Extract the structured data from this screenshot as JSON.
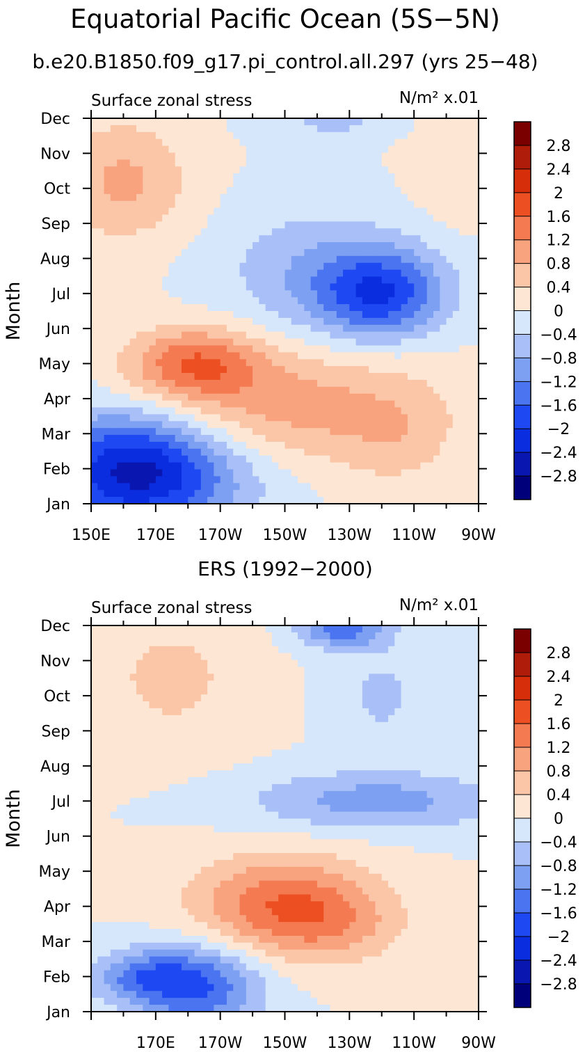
{
  "title": "Equatorial Pacific Ocean (5S−5N)",
  "subtitle": "b.e20.B1850.f09_g17.pi_control.all.297 (yrs 25−48)",
  "chart_data": [
    {
      "type": "heatmap",
      "name": "model",
      "panel_title": "",
      "left_label": "Surface zonal stress",
      "units_label": "N/m² x.01",
      "ylabel": "Month",
      "months": [
        "Jan",
        "Feb",
        "Mar",
        "Apr",
        "May",
        "Jun",
        "Jul",
        "Aug",
        "Sep",
        "Oct",
        "Nov",
        "Dec"
      ],
      "x_tick_labels": [
        "150E",
        "170E",
        "170W",
        "150W",
        "130W",
        "110W",
        "90W"
      ],
      "x_range_deg_east": [
        150,
        270
      ],
      "levels": [
        -2.8,
        -2.4,
        -2,
        -1.6,
        -1.2,
        -0.8,
        -0.4,
        0,
        0.4,
        0.8,
        1.2,
        1.6,
        2,
        2.4,
        2.8
      ],
      "level_labels": [
        "2.8",
        "2.4",
        "2",
        "1.6",
        "1.2",
        "0.8",
        "0.4",
        "0",
        "−0.4",
        "−0.8",
        "−1.2",
        "−1.6",
        "−2",
        "−2.4",
        "−2.8"
      ],
      "anomalies": [
        {
          "lon": 162,
          "month": 2.0,
          "sx": 20,
          "sy": 1.2,
          "amp": -2.2
        },
        {
          "lon": 178,
          "month": 1.7,
          "sx": 22,
          "sy": 1.0,
          "amp": -0.6
        },
        {
          "lon": 182,
          "month": 5.0,
          "sx": 14,
          "sy": 0.7,
          "amp": 1.4
        },
        {
          "lon": 210,
          "month": 3.8,
          "sx": 32,
          "sy": 1.2,
          "amp": 1.0
        },
        {
          "lon": 245,
          "month": 2.8,
          "sx": 12,
          "sy": 1.0,
          "amp": 0.4
        },
        {
          "lon": 240,
          "month": 7.0,
          "sx": 14,
          "sy": 0.9,
          "amp": -1.8
        },
        {
          "lon": 218,
          "month": 7.6,
          "sx": 20,
          "sy": 1.3,
          "amp": -0.7
        },
        {
          "lon": 160,
          "month": 10.2,
          "sx": 14,
          "sy": 1.2,
          "amp": 0.9
        },
        {
          "lon": 225,
          "month": 11.9,
          "sx": 14,
          "sy": 0.35,
          "amp": -0.5
        },
        {
          "lon": 265,
          "month": 10.8,
          "sx": 10,
          "sy": 1.2,
          "amp": 0.4
        }
      ]
    },
    {
      "type": "heatmap",
      "name": "ers",
      "panel_title": "ERS (1992−2000)",
      "left_label": "Surface zonal stress",
      "units_label": "N/m² x.01",
      "ylabel": "Month",
      "months": [
        "Jan",
        "Feb",
        "Mar",
        "Apr",
        "May",
        "Jun",
        "Jul",
        "Aug",
        "Sep",
        "Oct",
        "Nov",
        "Dec"
      ],
      "x_tick_labels": [
        "170E",
        "170W",
        "150W",
        "130W",
        "110W",
        "90W"
      ],
      "x_range_deg_east": [
        150,
        270
      ],
      "levels": [
        -2.8,
        -2.4,
        -2,
        -1.6,
        -1.2,
        -0.8,
        -0.4,
        0,
        0.4,
        0.8,
        1.2,
        1.6,
        2,
        2.4,
        2.8
      ],
      "level_labels": [
        "2.8",
        "2.4",
        "2",
        "1.6",
        "1.2",
        "0.8",
        "0.4",
        "0",
        "−0.4",
        "−0.8",
        "−1.2",
        "−1.6",
        "−2",
        "−2.4",
        "−2.8"
      ],
      "anomalies": [
        {
          "lon": 183,
          "month": 1.7,
          "sx": 14,
          "sy": 0.9,
          "amp": -1.6
        },
        {
          "lon": 165,
          "month": 2.0,
          "sx": 12,
          "sy": 0.5,
          "amp": -1.0
        },
        {
          "lon": 210,
          "month": 4.0,
          "sx": 20,
          "sy": 1.0,
          "amp": 1.6
        },
        {
          "lon": 228,
          "month": 3.4,
          "sx": 14,
          "sy": 0.7,
          "amp": 0.4
        },
        {
          "lon": 238,
          "month": 7.0,
          "sx": 28,
          "sy": 0.6,
          "amp": -1.0
        },
        {
          "lon": 228,
          "month": 11.9,
          "sx": 10,
          "sy": 0.4,
          "amp": -1.4
        },
        {
          "lon": 240,
          "month": 10.0,
          "sx": 10,
          "sy": 1.0,
          "amp": -0.5
        },
        {
          "lon": 175,
          "month": 10.5,
          "sx": 18,
          "sy": 1.5,
          "amp": 0.5
        }
      ]
    }
  ]
}
